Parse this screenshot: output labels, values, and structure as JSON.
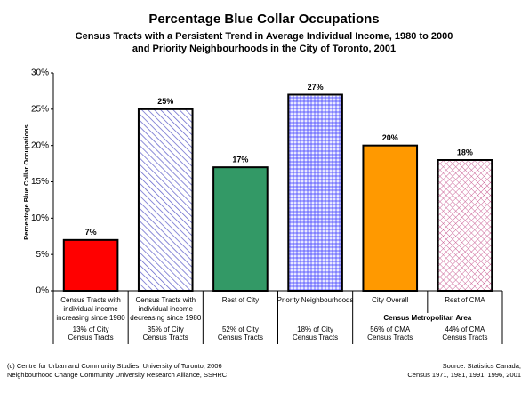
{
  "chart_data": {
    "type": "bar",
    "title": "Percentage Blue Collar Occupations",
    "subtitle": [
      "Census Tracts with a Persistent Trend in Average Individual Income, 1980 to 2000",
      "and Priority Neighbourhoods in the City of Toronto, 2001"
    ],
    "y_label": "Percentage Blue Collar Occupations",
    "categories": [
      [
        "Census Tracts with",
        "individual income",
        "increasing since 1980"
      ],
      [
        "Census Tracts with",
        "individual income",
        "decreasing since 1980"
      ],
      [
        "Rest of City"
      ],
      [
        "Priority Neighbourhoods"
      ],
      [
        "City Overall"
      ],
      [
        "Rest of CMA"
      ]
    ],
    "notes": [
      [
        "13% of City",
        "Census Tracts"
      ],
      [
        "35% of City",
        "Census Tracts"
      ],
      [
        "52% of City",
        "Census Tracts"
      ],
      [
        "18% of City",
        "Census Tracts"
      ],
      [
        "56% of CMA",
        "Census Tracts"
      ],
      [
        "44% of CMA",
        "Census Tracts"
      ]
    ],
    "group_label": "Census Metropolitan Area",
    "values": [
      7,
      25,
      17,
      27,
      20,
      18
    ],
    "value_labels": [
      "7%",
      "25%",
      "17%",
      "27%",
      "20%",
      "18%"
    ],
    "colors": [
      "#ff0000",
      "#6666cc",
      "#339966",
      "#8080ff",
      "#ff9900",
      "#cc6699"
    ],
    "fills": [
      "solid",
      "diagonal",
      "solid",
      "dots",
      "solid",
      "crosshatch"
    ],
    "ylim": [
      0,
      30
    ],
    "yticks": [
      {
        "value": 0,
        "label": "0%"
      },
      {
        "value": 5,
        "label": "5%"
      },
      {
        "value": 10,
        "label": "10%"
      },
      {
        "value": 15,
        "label": "15%"
      },
      {
        "value": 20,
        "label": "20%"
      },
      {
        "value": 25,
        "label": "25%"
      },
      {
        "value": 30,
        "label": "30%"
      }
    ],
    "footer_left": [
      "(c) Centre for Urban and Community Studies, University of Toronto, 2006",
      "Neighbourhood Change Community University Research Alliance, SSHRC"
    ],
    "footer_right": [
      "Source: Statistics Canada,",
      "Census 1971, 1981, 1991, 1996, 2001"
    ]
  }
}
